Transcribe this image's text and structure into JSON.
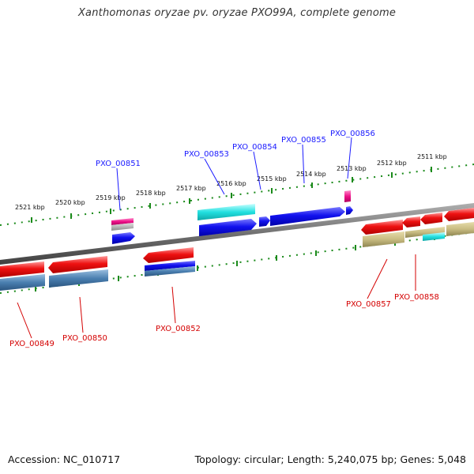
{
  "title": "Xanthomonas oryzae pv. oryzae PXO99A, complete genome",
  "footer": {
    "accession": "Accession: NC_010717",
    "info": "Topology: circular; Length: 5,240,075 bp; Genes: 5,048"
  },
  "ruler": [
    "2521 kbp",
    "2520 kbp",
    "2519 kbp",
    "2518 kbp",
    "2517 kbp",
    "2516 kbp",
    "2515 kbp",
    "2514 kbp",
    "2513 kbp",
    "2512 kbp",
    "2511 kbp"
  ],
  "genes_top": [
    "PXO_00851",
    "PXO_00853",
    "PXO_00854",
    "PXO_00855",
    "PXO_00856"
  ],
  "genes_bottom": [
    "PXO_00849",
    "PXO_00850",
    "PXO_00852",
    "PXO_00857",
    "PXO_00858"
  ],
  "colors": {
    "red": "#ee1111",
    "blue": "#1111ee",
    "cyan": "#22dddd",
    "magenta": "#ee1188",
    "steelblue": "#4a7fb0",
    "olive": "#c8bc82",
    "grey_band": "#888888",
    "tick_green": "#1a8a1a",
    "label_blue": "#1a1aff",
    "label_red": "#d40000"
  }
}
